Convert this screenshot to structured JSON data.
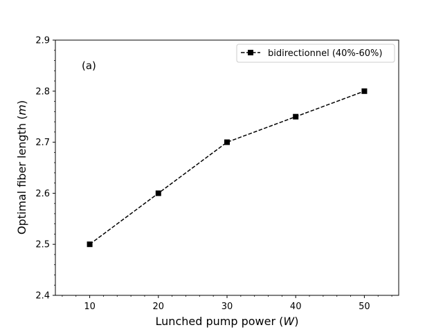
{
  "chart_data": {
    "type": "line",
    "panel_label": "(a)",
    "xlabel_text": "Lunched pump power (",
    "xlabel_var": "W",
    "xlabel_close": ")",
    "ylabel_text": "Optimal fiber length (",
    "ylabel_var": "m",
    "ylabel_close": ")",
    "xlim": [
      5,
      55
    ],
    "ylim": [
      2.4,
      2.9
    ],
    "x_ticks": [
      10,
      20,
      30,
      40,
      50
    ],
    "x_tick_labels": [
      "10",
      "20",
      "30",
      "40",
      "50"
    ],
    "y_ticks": [
      2.4,
      2.5,
      2.6,
      2.7,
      2.8,
      2.9
    ],
    "y_tick_labels": [
      "2.4",
      "2.5",
      "2.6",
      "2.7",
      "2.8",
      "2.9"
    ],
    "legend_position": "top-right",
    "series": [
      {
        "name": "bidirectionnel (40%-60%)",
        "x": [
          10,
          20,
          30,
          40,
          50
        ],
        "values": [
          2.5,
          2.6,
          2.7,
          2.75,
          2.8
        ],
        "color": "#000000",
        "line_style": "dashed",
        "marker": "square"
      }
    ]
  }
}
